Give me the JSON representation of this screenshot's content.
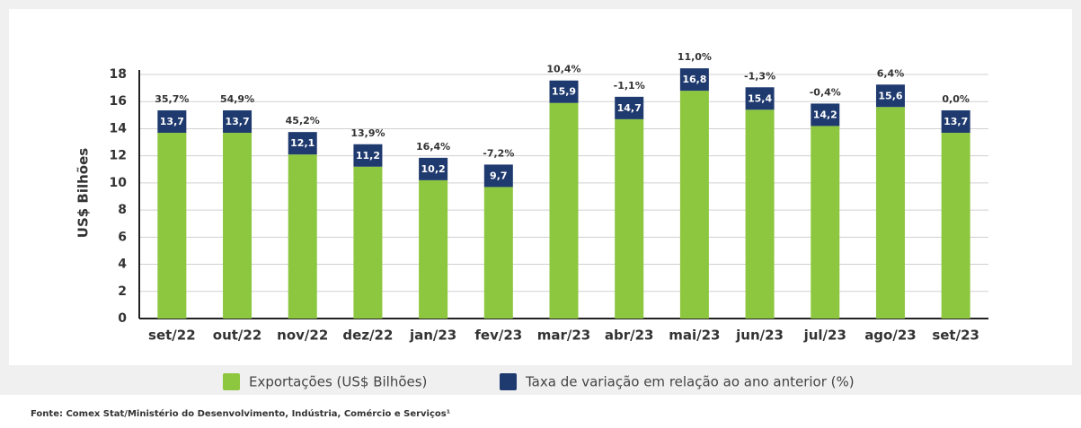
{
  "chart_data": {
    "type": "bar",
    "ylabel": "US$ Bilhões",
    "categories": [
      "set/22",
      "out/22",
      "nov/22",
      "dez/22",
      "jan/23",
      "fev/23",
      "mar/23",
      "abr/23",
      "mai/23",
      "jun/23",
      "jul/23",
      "ago/23",
      "set/23"
    ],
    "series": [
      {
        "name": "Exportações (US$ Bilhões)",
        "color": "#8dc63f",
        "values": [
          13.7,
          13.7,
          12.1,
          11.2,
          10.2,
          9.7,
          15.9,
          14.7,
          16.8,
          15.4,
          14.2,
          15.6,
          13.7
        ],
        "value_labels": [
          "13,7",
          "13,7",
          "12,1",
          "11,2",
          "10,2",
          "9,7",
          "15,9",
          "14,7",
          "16,8",
          "15,4",
          "14,2",
          "15,6",
          "13,7"
        ]
      },
      {
        "name": "Taxa de variação em relação ao ano anterior (%)",
        "color": "#1f3a6e",
        "values": [
          35.7,
          54.9,
          45.2,
          13.9,
          16.4,
          -7.2,
          10.4,
          -1.1,
          11.0,
          -1.3,
          -0.4,
          6.4,
          0.0
        ],
        "value_labels": [
          "35,7%",
          "54,9%",
          "45,2%",
          "13,9%",
          "16,4%",
          "-7,2%",
          "10,4%",
          "-1,1%",
          "11,0%",
          "-1,3%",
          "-0,4%",
          "6,4%",
          "0,0%"
        ]
      }
    ],
    "ylim": [
      0,
      18
    ],
    "yticks": [
      0,
      2,
      4,
      6,
      8,
      10,
      12,
      14,
      16,
      18
    ],
    "grid": true,
    "source": "Fonte: Comex Stat/Ministério do Desenvolvimento, Indústria, Comércio e Serviços¹"
  }
}
